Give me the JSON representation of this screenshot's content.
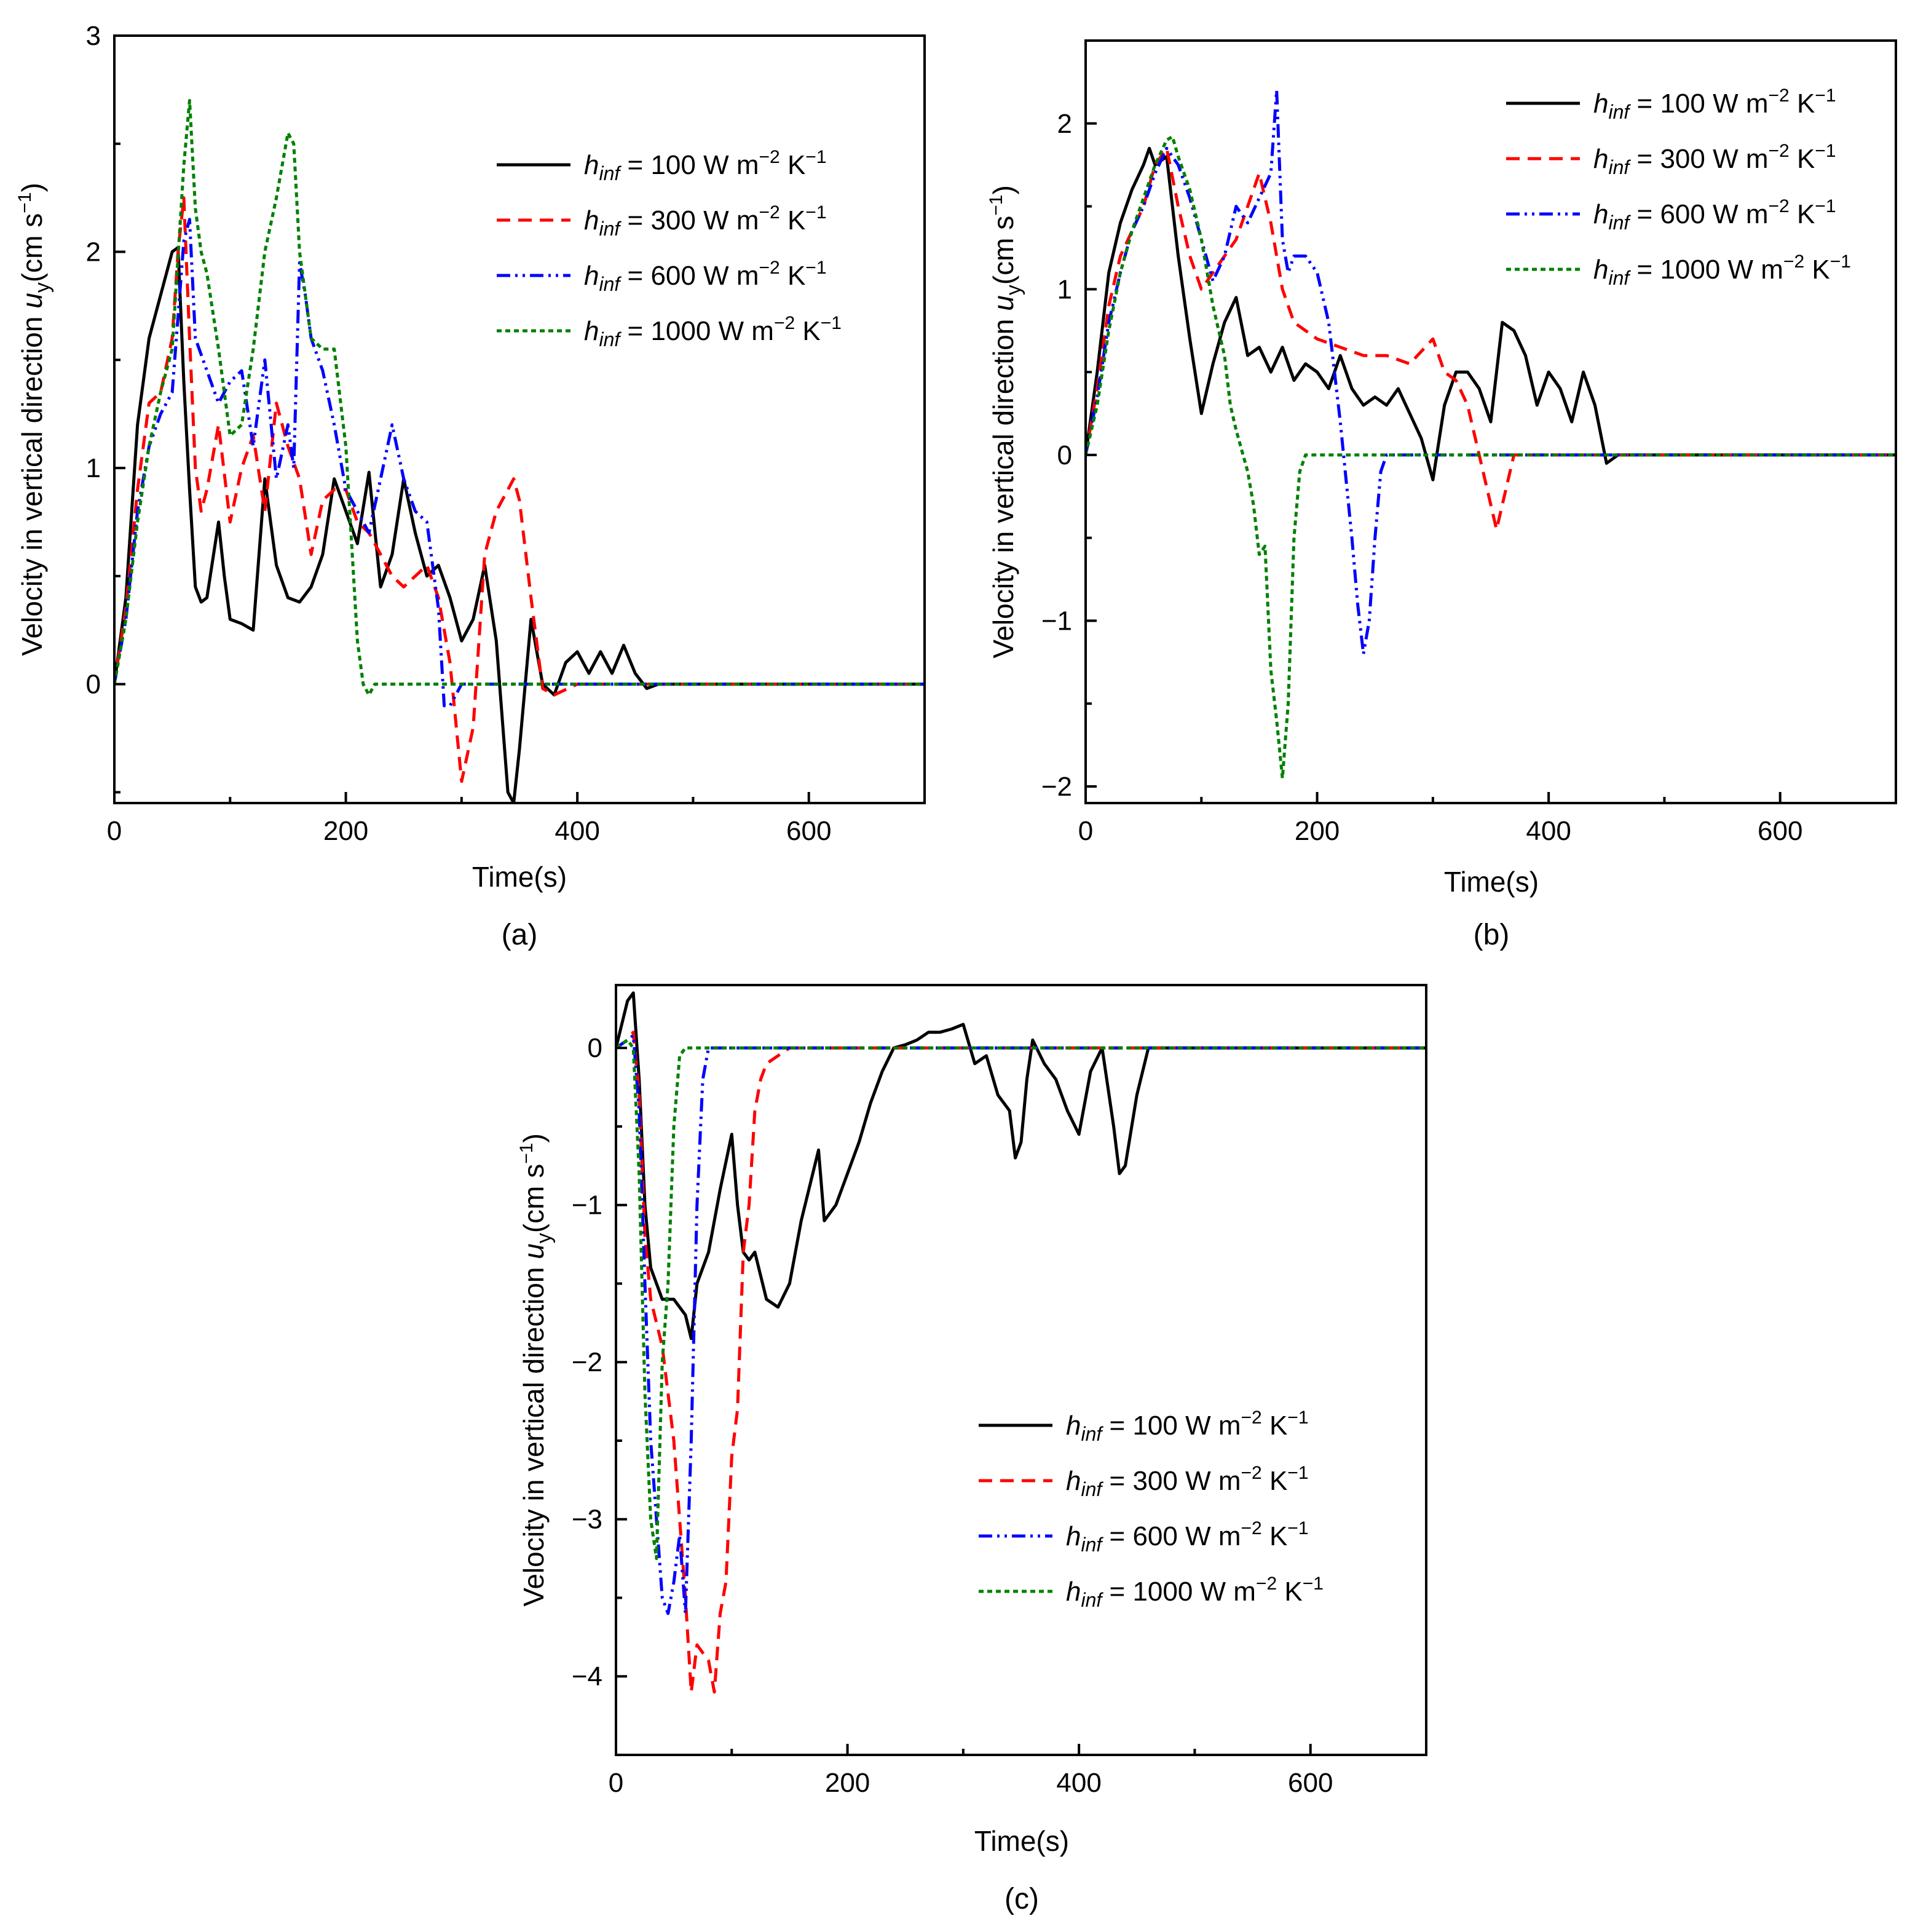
{
  "figure": {
    "xlabel": "Time(s)",
    "ylabel_prefix": "Velocity in vertical direction ",
    "ylabel_var": "u",
    "ylabel_sub": "y",
    "ylabel_unit": "(cm s",
    "ylabel_exp": "−1",
    "ylabel_close": ")"
  },
  "legend": {
    "h": "h",
    "sub": "inf",
    "eq": " = ",
    "unit_a": " W m",
    "exp_a": "−2",
    "unit_b": " K",
    "exp_b": "−1"
  },
  "series_style": [
    {
      "value": "100",
      "color": "#000000",
      "dash": ""
    },
    {
      "value": "300",
      "color": "#ff0000",
      "dash": "22 13"
    },
    {
      "value": "600",
      "color": "#0000ff",
      "dash": "22 8 4 8 4 8"
    },
    {
      "value": "1000",
      "color": "#008000",
      "dash": "8 6"
    }
  ],
  "chart_data": [
    {
      "type": "line",
      "panel": "(a)",
      "xlabel": "Time(s)",
      "ylabel": "Velocity in vertical direction u_y (cm s−1)",
      "xlim": [
        0,
        700
      ],
      "ylim": [
        -0.55,
        3
      ],
      "xticks": [
        0,
        200,
        400,
        600
      ],
      "yticks": [
        0,
        1,
        2,
        3
      ],
      "legend_position": "top-right",
      "series": [
        {
          "name": "h_inf = 100 W m−2 K−1",
          "x": [
            0,
            10,
            20,
            30,
            40,
            50,
            55,
            60,
            65,
            70,
            75,
            80,
            90,
            95,
            100,
            110,
            120,
            130,
            140,
            150,
            160,
            170,
            180,
            190,
            200,
            210,
            220,
            230,
            240,
            250,
            260,
            270,
            280,
            290,
            300,
            310,
            320,
            330,
            340,
            345,
            350,
            360,
            370,
            380,
            390,
            400,
            410,
            420,
            430,
            440,
            450,
            460,
            470,
            500,
            550,
            600,
            650,
            700
          ],
          "y": [
            0,
            0.4,
            1.2,
            1.6,
            1.8,
            2.0,
            2.02,
            1.4,
            0.9,
            0.45,
            0.38,
            0.4,
            0.75,
            0.5,
            0.3,
            0.28,
            0.25,
            0.95,
            0.55,
            0.4,
            0.38,
            0.45,
            0.6,
            0.95,
            0.8,
            0.65,
            0.98,
            0.45,
            0.6,
            0.95,
            0.7,
            0.5,
            0.55,
            0.4,
            0.2,
            0.3,
            0.55,
            0.2,
            -0.5,
            -0.55,
            -0.3,
            0.3,
            0,
            -0.05,
            0.1,
            0.15,
            0.05,
            0.15,
            0.05,
            0.18,
            0.05,
            -0.02,
            0,
            0,
            0,
            0,
            0,
            0
          ]
        },
        {
          "name": "h_inf = 300 W m−2 K−1",
          "x": [
            0,
            10,
            20,
            30,
            40,
            50,
            55,
            60,
            65,
            70,
            75,
            80,
            90,
            100,
            110,
            120,
            130,
            140,
            150,
            160,
            170,
            180,
            190,
            200,
            210,
            220,
            230,
            240,
            250,
            260,
            270,
            280,
            290,
            300,
            310,
            320,
            330,
            340,
            345,
            350,
            360,
            370,
            380,
            400,
            500,
            600,
            700
          ],
          "y": [
            0,
            0.35,
            0.9,
            1.3,
            1.35,
            1.6,
            2.0,
            2.25,
            1.6,
            1.0,
            0.8,
            0.9,
            1.2,
            0.75,
            1.0,
            1.15,
            0.8,
            1.3,
            1.1,
            0.95,
            0.6,
            0.85,
            0.9,
            0.9,
            0.75,
            0.7,
            0.6,
            0.5,
            0.45,
            0.5,
            0.55,
            0.4,
            0.1,
            -0.45,
            -0.2,
            0.6,
            0.8,
            0.9,
            0.95,
            0.85,
            0.4,
            -0.02,
            -0.05,
            0,
            0,
            0,
            0
          ]
        },
        {
          "name": "h_inf = 600 W m−2 K−1",
          "x": [
            0,
            10,
            20,
            30,
            40,
            50,
            55,
            60,
            65,
            70,
            80,
            90,
            100,
            110,
            120,
            130,
            140,
            150,
            155,
            160,
            165,
            170,
            180,
            190,
            200,
            210,
            220,
            230,
            240,
            250,
            260,
            270,
            280,
            285,
            290,
            300,
            310,
            320,
            400,
            500,
            600,
            700
          ],
          "y": [
            0,
            0.3,
            0.8,
            1.1,
            1.25,
            1.35,
            1.7,
            2.05,
            2.15,
            1.6,
            1.45,
            1.3,
            1.4,
            1.45,
            1.1,
            1.5,
            0.95,
            1.2,
            1.0,
            1.95,
            1.8,
            1.6,
            1.45,
            1.2,
            0.9,
            0.8,
            0.7,
            0.95,
            1.2,
            0.95,
            0.8,
            0.75,
            0.35,
            -0.1,
            -0.1,
            0,
            0,
            0,
            0,
            0,
            0,
            0
          ]
        },
        {
          "name": "h_inf = 1000 W m−2 K−1",
          "x": [
            0,
            10,
            20,
            30,
            40,
            50,
            60,
            65,
            70,
            75,
            80,
            90,
            100,
            110,
            120,
            130,
            140,
            150,
            155,
            160,
            165,
            170,
            180,
            190,
            200,
            210,
            215,
            220,
            225,
            230,
            300,
            400,
            500,
            600,
            700
          ],
          "y": [
            0,
            0.3,
            0.75,
            1.1,
            1.35,
            1.55,
            2.4,
            2.7,
            2.2,
            2.0,
            1.9,
            1.55,
            1.15,
            1.2,
            1.55,
            2.0,
            2.25,
            2.55,
            2.5,
            2.0,
            1.8,
            1.6,
            1.55,
            1.55,
            1.1,
            0.2,
            0,
            -0.05,
            0,
            0,
            0,
            0,
            0,
            0,
            0
          ]
        }
      ]
    },
    {
      "type": "line",
      "panel": "(b)",
      "xlabel": "Time(s)",
      "ylabel": "Velocity in vertical direction u_y (cm s−1)",
      "xlim": [
        0,
        700
      ],
      "ylim": [
        -2.1,
        2.5
      ],
      "xticks": [
        0,
        200,
        400,
        600
      ],
      "yticks": [
        -2,
        -1,
        0,
        1,
        2
      ],
      "legend_position": "top-right",
      "series": [
        {
          "name": "h_inf = 100 W m−2 K−1",
          "x": [
            0,
            10,
            20,
            30,
            40,
            50,
            55,
            60,
            70,
            75,
            80,
            90,
            100,
            110,
            120,
            130,
            140,
            150,
            160,
            170,
            180,
            190,
            200,
            210,
            220,
            230,
            240,
            250,
            260,
            270,
            280,
            290,
            300,
            310,
            320,
            330,
            340,
            350,
            360,
            370,
            380,
            390,
            400,
            410,
            420,
            430,
            440,
            450,
            460,
            500,
            600,
            700
          ],
          "y": [
            0,
            0.5,
            1.1,
            1.4,
            1.6,
            1.75,
            1.85,
            1.75,
            1.8,
            1.5,
            1.2,
            0.7,
            0.25,
            0.55,
            0.8,
            0.95,
            0.6,
            0.65,
            0.5,
            0.65,
            0.45,
            0.55,
            0.5,
            0.4,
            0.6,
            0.4,
            0.3,
            0.35,
            0.3,
            0.4,
            0.25,
            0.1,
            -0.15,
            0.3,
            0.5,
            0.5,
            0.4,
            0.2,
            0.8,
            0.75,
            0.6,
            0.3,
            0.5,
            0.4,
            0.2,
            0.5,
            0.3,
            -0.05,
            0,
            0,
            0,
            0
          ]
        },
        {
          "name": "h_inf = 300 W m−2 K−1",
          "x": [
            0,
            10,
            20,
            30,
            40,
            50,
            60,
            70,
            80,
            90,
            100,
            110,
            120,
            130,
            140,
            150,
            160,
            170,
            180,
            190,
            200,
            220,
            240,
            260,
            280,
            300,
            310,
            320,
            330,
            340,
            350,
            355,
            360,
            370,
            380,
            400,
            500,
            600,
            700
          ],
          "y": [
            0,
            0.4,
            0.9,
            1.2,
            1.35,
            1.5,
            1.75,
            1.85,
            1.5,
            1.2,
            1.0,
            1.1,
            1.2,
            1.3,
            1.5,
            1.7,
            1.4,
            1.0,
            0.8,
            0.75,
            0.7,
            0.65,
            0.6,
            0.6,
            0.55,
            0.7,
            0.5,
            0.45,
            0.3,
            0,
            -0.3,
            -0.45,
            -0.3,
            0,
            0,
            0,
            0,
            0,
            0
          ]
        },
        {
          "name": "h_inf = 600 W m−2 K−1",
          "x": [
            0,
            10,
            20,
            30,
            40,
            50,
            60,
            70,
            80,
            90,
            100,
            110,
            120,
            130,
            140,
            150,
            160,
            165,
            170,
            175,
            180,
            190,
            200,
            210,
            215,
            220,
            230,
            235,
            240,
            245,
            250,
            255,
            260,
            300,
            400,
            500,
            600,
            700
          ],
          "y": [
            0,
            0.35,
            0.8,
            1.1,
            1.35,
            1.5,
            1.7,
            1.85,
            1.75,
            1.55,
            1.3,
            1.05,
            1.2,
            1.5,
            1.4,
            1.55,
            1.7,
            2.2,
            1.3,
            1.1,
            1.2,
            1.2,
            1.1,
            0.8,
            0.5,
            0.2,
            -0.5,
            -0.9,
            -1.2,
            -1.0,
            -0.5,
            -0.1,
            0,
            0,
            0,
            0,
            0,
            0
          ]
        },
        {
          "name": "h_inf = 1000 W m−2 K−1",
          "x": [
            0,
            10,
            20,
            30,
            40,
            50,
            60,
            70,
            75,
            80,
            90,
            100,
            110,
            120,
            125,
            130,
            140,
            145,
            150,
            155,
            160,
            165,
            170,
            175,
            180,
            185,
            190,
            200,
            300,
            400,
            500,
            600,
            700
          ],
          "y": [
            0,
            0.3,
            0.75,
            1.1,
            1.35,
            1.55,
            1.75,
            1.9,
            1.92,
            1.8,
            1.6,
            1.3,
            0.9,
            0.6,
            0.3,
            0.15,
            -0.1,
            -0.3,
            -0.6,
            -0.55,
            -1.3,
            -1.6,
            -1.95,
            -1.5,
            -0.5,
            -0.1,
            0,
            0,
            0,
            0,
            0,
            0,
            0
          ]
        }
      ]
    },
    {
      "type": "line",
      "panel": "(c)",
      "xlabel": "Time(s)",
      "ylabel": "Velocity in vertical direction u_y (cm s−1)",
      "xlim": [
        0,
        700
      ],
      "ylim": [
        -4.5,
        0.4
      ],
      "xticks": [
        0,
        200,
        400,
        600
      ],
      "yticks": [
        -4,
        -3,
        -2,
        -1,
        0
      ],
      "legend_position": "bottom-right",
      "series": [
        {
          "name": "h_inf = 100 W m−2 K−1",
          "x": [
            0,
            10,
            15,
            20,
            25,
            30,
            40,
            50,
            60,
            65,
            70,
            80,
            90,
            100,
            105,
            110,
            115,
            120,
            130,
            140,
            150,
            160,
            170,
            175,
            180,
            190,
            200,
            210,
            220,
            230,
            240,
            250,
            260,
            270,
            280,
            290,
            300,
            310,
            320,
            330,
            340,
            345,
            350,
            355,
            360,
            370,
            380,
            390,
            400,
            410,
            420,
            430,
            435,
            440,
            450,
            460,
            500,
            600,
            700
          ],
          "y": [
            0,
            0.3,
            0.35,
            -0.2,
            -1.0,
            -1.4,
            -1.6,
            -1.6,
            -1.7,
            -1.85,
            -1.5,
            -1.3,
            -0.9,
            -0.55,
            -1.0,
            -1.3,
            -1.35,
            -1.3,
            -1.6,
            -1.65,
            -1.5,
            -1.1,
            -0.8,
            -0.65,
            -1.1,
            -1.0,
            -0.8,
            -0.6,
            -0.35,
            -0.15,
            0,
            0.02,
            0.05,
            0.1,
            0.1,
            0.12,
            0.15,
            -0.1,
            -0.05,
            -0.3,
            -0.4,
            -0.7,
            -0.6,
            -0.2,
            0.05,
            -0.1,
            -0.2,
            -0.4,
            -0.55,
            -0.15,
            0,
            -0.5,
            -0.8,
            -0.75,
            -0.3,
            0,
            0,
            0,
            0
          ]
        },
        {
          "name": "h_inf = 300 W m−2 K−1",
          "x": [
            0,
            10,
            15,
            20,
            25,
            30,
            40,
            50,
            60,
            65,
            70,
            80,
            85,
            90,
            95,
            100,
            105,
            110,
            115,
            120,
            125,
            130,
            150,
            200,
            300,
            400,
            500,
            600,
            700
          ],
          "y": [
            0,
            0.05,
            0.1,
            -0.3,
            -1.2,
            -1.6,
            -1.9,
            -2.5,
            -3.5,
            -4.1,
            -3.8,
            -3.9,
            -4.1,
            -3.6,
            -3.4,
            -2.6,
            -2.3,
            -1.3,
            -1.0,
            -0.4,
            -0.2,
            -0.1,
            0,
            0,
            0,
            0,
            0,
            0,
            0
          ]
        },
        {
          "name": "h_inf = 600 W m−2 K−1",
          "x": [
            0,
            10,
            15,
            20,
            25,
            30,
            40,
            45,
            50,
            55,
            60,
            65,
            70,
            75,
            80,
            100,
            200,
            300,
            400,
            500,
            600,
            700
          ],
          "y": [
            0,
            0.05,
            0.08,
            -0.4,
            -1.5,
            -2.5,
            -3.5,
            -3.6,
            -3.4,
            -3.1,
            -3.6,
            -2.5,
            -1.0,
            -0.2,
            0,
            0,
            0,
            0,
            0,
            0,
            0,
            0
          ]
        },
        {
          "name": "h_inf = 1000 W m−2 K−1",
          "x": [
            0,
            10,
            15,
            20,
            25,
            30,
            35,
            40,
            45,
            50,
            55,
            60,
            100,
            200,
            300,
            400,
            500,
            600,
            700
          ],
          "y": [
            0,
            0.05,
            0,
            -0.8,
            -2.2,
            -3.0,
            -3.25,
            -2.0,
            -1.5,
            -0.5,
            -0.05,
            0,
            0,
            0,
            0,
            0,
            0,
            0,
            0
          ]
        }
      ]
    }
  ]
}
